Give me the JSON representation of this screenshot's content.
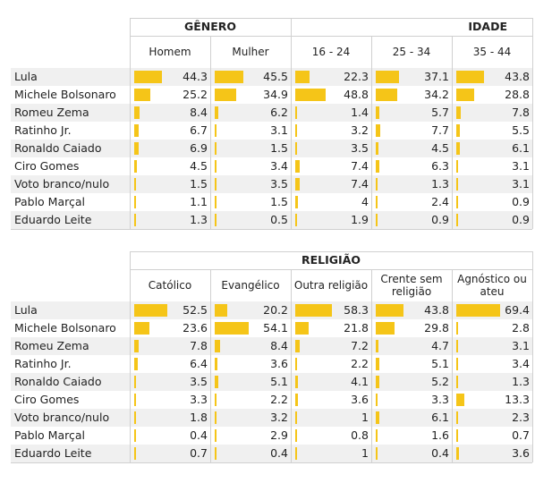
{
  "chart_data": [
    {
      "type": "table",
      "groups": [
        {
          "label": "GÊNERO",
          "columns": [
            0,
            1
          ]
        },
        {
          "label": "IDADE",
          "columns": [
            2,
            3,
            4
          ]
        }
      ],
      "columns": [
        "Homem",
        "Mulher",
        "16 - 24",
        "25 - 34",
        "35 - 44"
      ],
      "rows": [
        "Lula",
        "Michele Bolsonaro",
        "Romeu Zema",
        "Ratinho Jr.",
        "Ronaldo Caiado",
        "Ciro Gomes",
        "Voto branco/nulo",
        "Pablo Marçal",
        "Eduardo Leite"
      ],
      "values": [
        [
          44.3,
          45.5,
          22.3,
          37.1,
          43.8
        ],
        [
          25.2,
          34.9,
          48.8,
          34.2,
          28.8
        ],
        [
          8.4,
          6.2,
          1.4,
          5.7,
          7.8
        ],
        [
          6.7,
          3.1,
          3.2,
          7.7,
          5.5
        ],
        [
          6.9,
          1.5,
          3.5,
          4.5,
          6.1
        ],
        [
          4.5,
          3.4,
          7.4,
          6.3,
          3.1
        ],
        [
          1.5,
          3.5,
          7.4,
          1.3,
          3.1
        ],
        [
          1.1,
          1.5,
          4,
          2.4,
          0.9
        ],
        [
          1.3,
          0.5,
          1.9,
          0.9,
          0.9
        ]
      ],
      "bar_color": "#f5c518"
    },
    {
      "type": "table",
      "groups": [
        {
          "label": "RELIGIÃO",
          "columns": [
            0,
            1,
            2,
            3,
            4
          ]
        }
      ],
      "columns": [
        "Católico",
        "Evangélico",
        "Outra religião",
        "Crente sem religião",
        "Agnóstico ou ateu"
      ],
      "rows": [
        "Lula",
        "Michele Bolsonaro",
        "Romeu Zema",
        "Ratinho Jr.",
        "Ronaldo Caiado",
        "Ciro Gomes",
        "Voto branco/nulo",
        "Pablo Marçal",
        "Eduardo Leite"
      ],
      "values": [
        [
          52.5,
          20.2,
          58.3,
          43.8,
          69.4
        ],
        [
          23.6,
          54.1,
          21.8,
          29.8,
          2.8
        ],
        [
          7.8,
          8.4,
          7.2,
          4.7,
          3.1
        ],
        [
          6.4,
          3.6,
          2.2,
          5.1,
          3.4
        ],
        [
          3.5,
          5.1,
          4.1,
          5.2,
          1.3
        ],
        [
          3.3,
          2.2,
          3.6,
          3.3,
          13.3
        ],
        [
          1.8,
          3.2,
          1,
          6.1,
          2.3
        ],
        [
          0.4,
          2.9,
          0.8,
          1.6,
          0.7
        ],
        [
          0.7,
          0.4,
          1,
          0.4,
          3.6
        ]
      ],
      "bar_color": "#f5c518"
    }
  ]
}
